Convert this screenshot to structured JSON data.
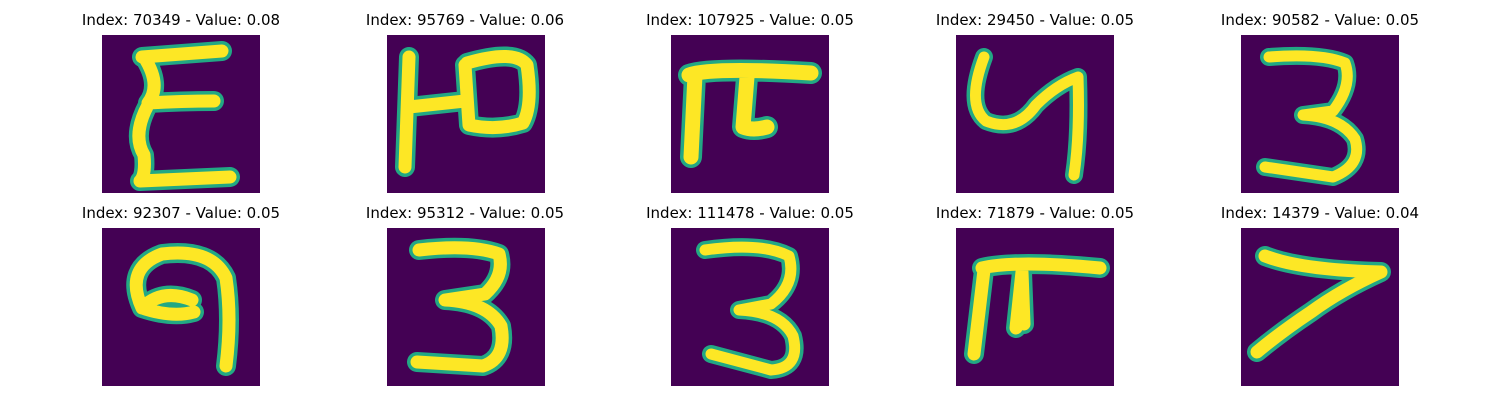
{
  "colors": {
    "background": "#440154",
    "ink": "#fde725",
    "edge": "#22a884",
    "mid": "#5ec962"
  },
  "panels": [
    {
      "title": "Index: 70349 - Value: 0.08",
      "glyph": "glyph-e-like"
    },
    {
      "title": "Index: 95769 - Value: 0.06",
      "glyph": "glyph-h-like"
    },
    {
      "title": "Index: 107925 - Value: 0.05",
      "glyph": "glyph-pi-like"
    },
    {
      "title": "Index: 29450 - Value: 0.05",
      "glyph": "glyph-y-like"
    },
    {
      "title": "Index: 90582 - Value: 0.05",
      "glyph": "glyph-three"
    },
    {
      "title": "Index: 92307 - Value: 0.05",
      "glyph": "glyph-nine-like"
    },
    {
      "title": "Index: 95312 - Value: 0.05",
      "glyph": "glyph-three"
    },
    {
      "title": "Index: 111478 - Value: 0.05",
      "glyph": "glyph-three"
    },
    {
      "title": "Index: 71879 - Value: 0.05",
      "glyph": "glyph-pi-like"
    },
    {
      "title": "Index: 14379 - Value: 0.04",
      "glyph": "glyph-seven-like"
    }
  ]
}
